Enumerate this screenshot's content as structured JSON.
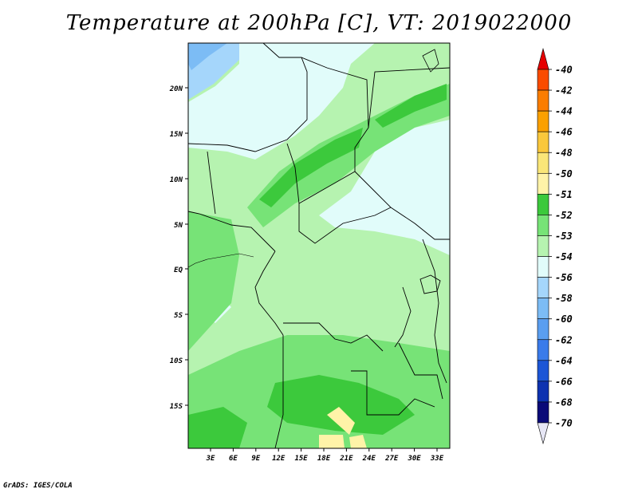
{
  "title": "Temperature at 200hPa [C], VT: 2019022000",
  "credit": "GrADS: IGES/COLA",
  "map": {
    "lat_labels": [
      "20N",
      "15N",
      "10N",
      "5N",
      "EQ",
      "5S",
      "10S",
      "15S"
    ],
    "lon_labels": [
      "3E",
      "6E",
      "9E",
      "12E",
      "15E",
      "18E",
      "21E",
      "24E",
      "27E",
      "30E",
      "33E"
    ],
    "colors": {
      "band_-50_-51": "#fff3a8",
      "band_-51_-52": "#3cc93c",
      "band_-52_-53": "#77e377",
      "band_-53_-54": "#b6f3b0",
      "band_-54_-56": "#e1fcfa",
      "band_-56_-58": "#a5d6fb",
      "band_-58_-60": "#7cbcf5"
    }
  },
  "colorbar": {
    "labels": [
      "-40",
      "-42",
      "-44",
      "-46",
      "-48",
      "-50",
      "-51",
      "-52",
      "-53",
      "-54",
      "-56",
      "-58",
      "-60",
      "-62",
      "-64",
      "-66",
      "-68",
      "-70"
    ],
    "colors": [
      "#f01e00",
      "#fa4b00",
      "#fa7d00",
      "#faa000",
      "#fac83c",
      "#fae678",
      "#fff3a8",
      "#3cc93c",
      "#77e377",
      "#b6f3b0",
      "#e1fcfa",
      "#a5d6fb",
      "#7cbcf5",
      "#5a9ef0",
      "#3a7bea",
      "#1c56d6",
      "#0d32b0",
      "#0a0a78"
    ],
    "top_color": "#e60000",
    "bottom_color": "#e6e6f5"
  }
}
